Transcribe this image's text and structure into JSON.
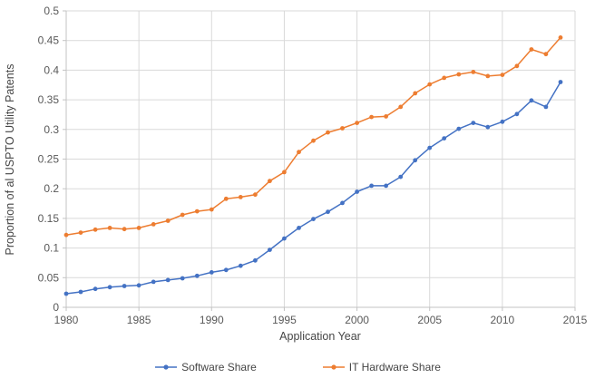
{
  "chart_data": {
    "type": "line",
    "title": "",
    "xlabel": "Application Year",
    "ylabel": "Proportion of al USPTO Utility Patents",
    "x": [
      1980,
      1981,
      1982,
      1983,
      1984,
      1985,
      1986,
      1987,
      1988,
      1989,
      1990,
      1991,
      1992,
      1993,
      1994,
      1995,
      1996,
      1997,
      1998,
      1999,
      2000,
      2001,
      2002,
      2003,
      2004,
      2005,
      2006,
      2007,
      2008,
      2009,
      2010,
      2011,
      2012,
      2013,
      2014
    ],
    "series": [
      {
        "name": "Software Share",
        "color": "#4472C4",
        "values": [
          0.023,
          0.026,
          0.031,
          0.034,
          0.036,
          0.037,
          0.043,
          0.046,
          0.049,
          0.053,
          0.059,
          0.063,
          0.07,
          0.079,
          0.097,
          0.116,
          0.134,
          0.149,
          0.161,
          0.176,
          0.195,
          0.205,
          0.205,
          0.22,
          0.248,
          0.269,
          0.285,
          0.301,
          0.311,
          0.304,
          0.313,
          0.326,
          0.349,
          0.338,
          0.38
        ]
      },
      {
        "name": "IT Hardware Share",
        "color": "#ED7D31",
        "values": [
          0.122,
          0.126,
          0.131,
          0.134,
          0.132,
          0.134,
          0.14,
          0.146,
          0.156,
          0.162,
          0.165,
          0.183,
          0.186,
          0.19,
          0.213,
          0.228,
          0.262,
          0.281,
          0.295,
          0.302,
          0.311,
          0.321,
          0.322,
          0.338,
          0.361,
          0.376,
          0.387,
          0.393,
          0.397,
          0.39,
          0.392,
          0.407,
          0.435,
          0.427,
          0.455
        ]
      }
    ],
    "xlim": [
      1980,
      2015
    ],
    "ylim": [
      0,
      0.5
    ],
    "x_ticks": [
      "1980",
      "1985",
      "1990",
      "1995",
      "2000",
      "2005",
      "2010",
      "2015"
    ],
    "y_ticks": [
      "0",
      "0.05",
      "0.1",
      "0.15",
      "0.2",
      "0.25",
      "0.3",
      "0.35",
      "0.4",
      "0.45",
      "0.5"
    ],
    "grid": true,
    "legend_position": "bottom"
  },
  "colors": {
    "gridline": "#D9D9D9",
    "axis_line": "#C3C3C3",
    "tick_text": "#595959",
    "title_text": "#454545"
  }
}
